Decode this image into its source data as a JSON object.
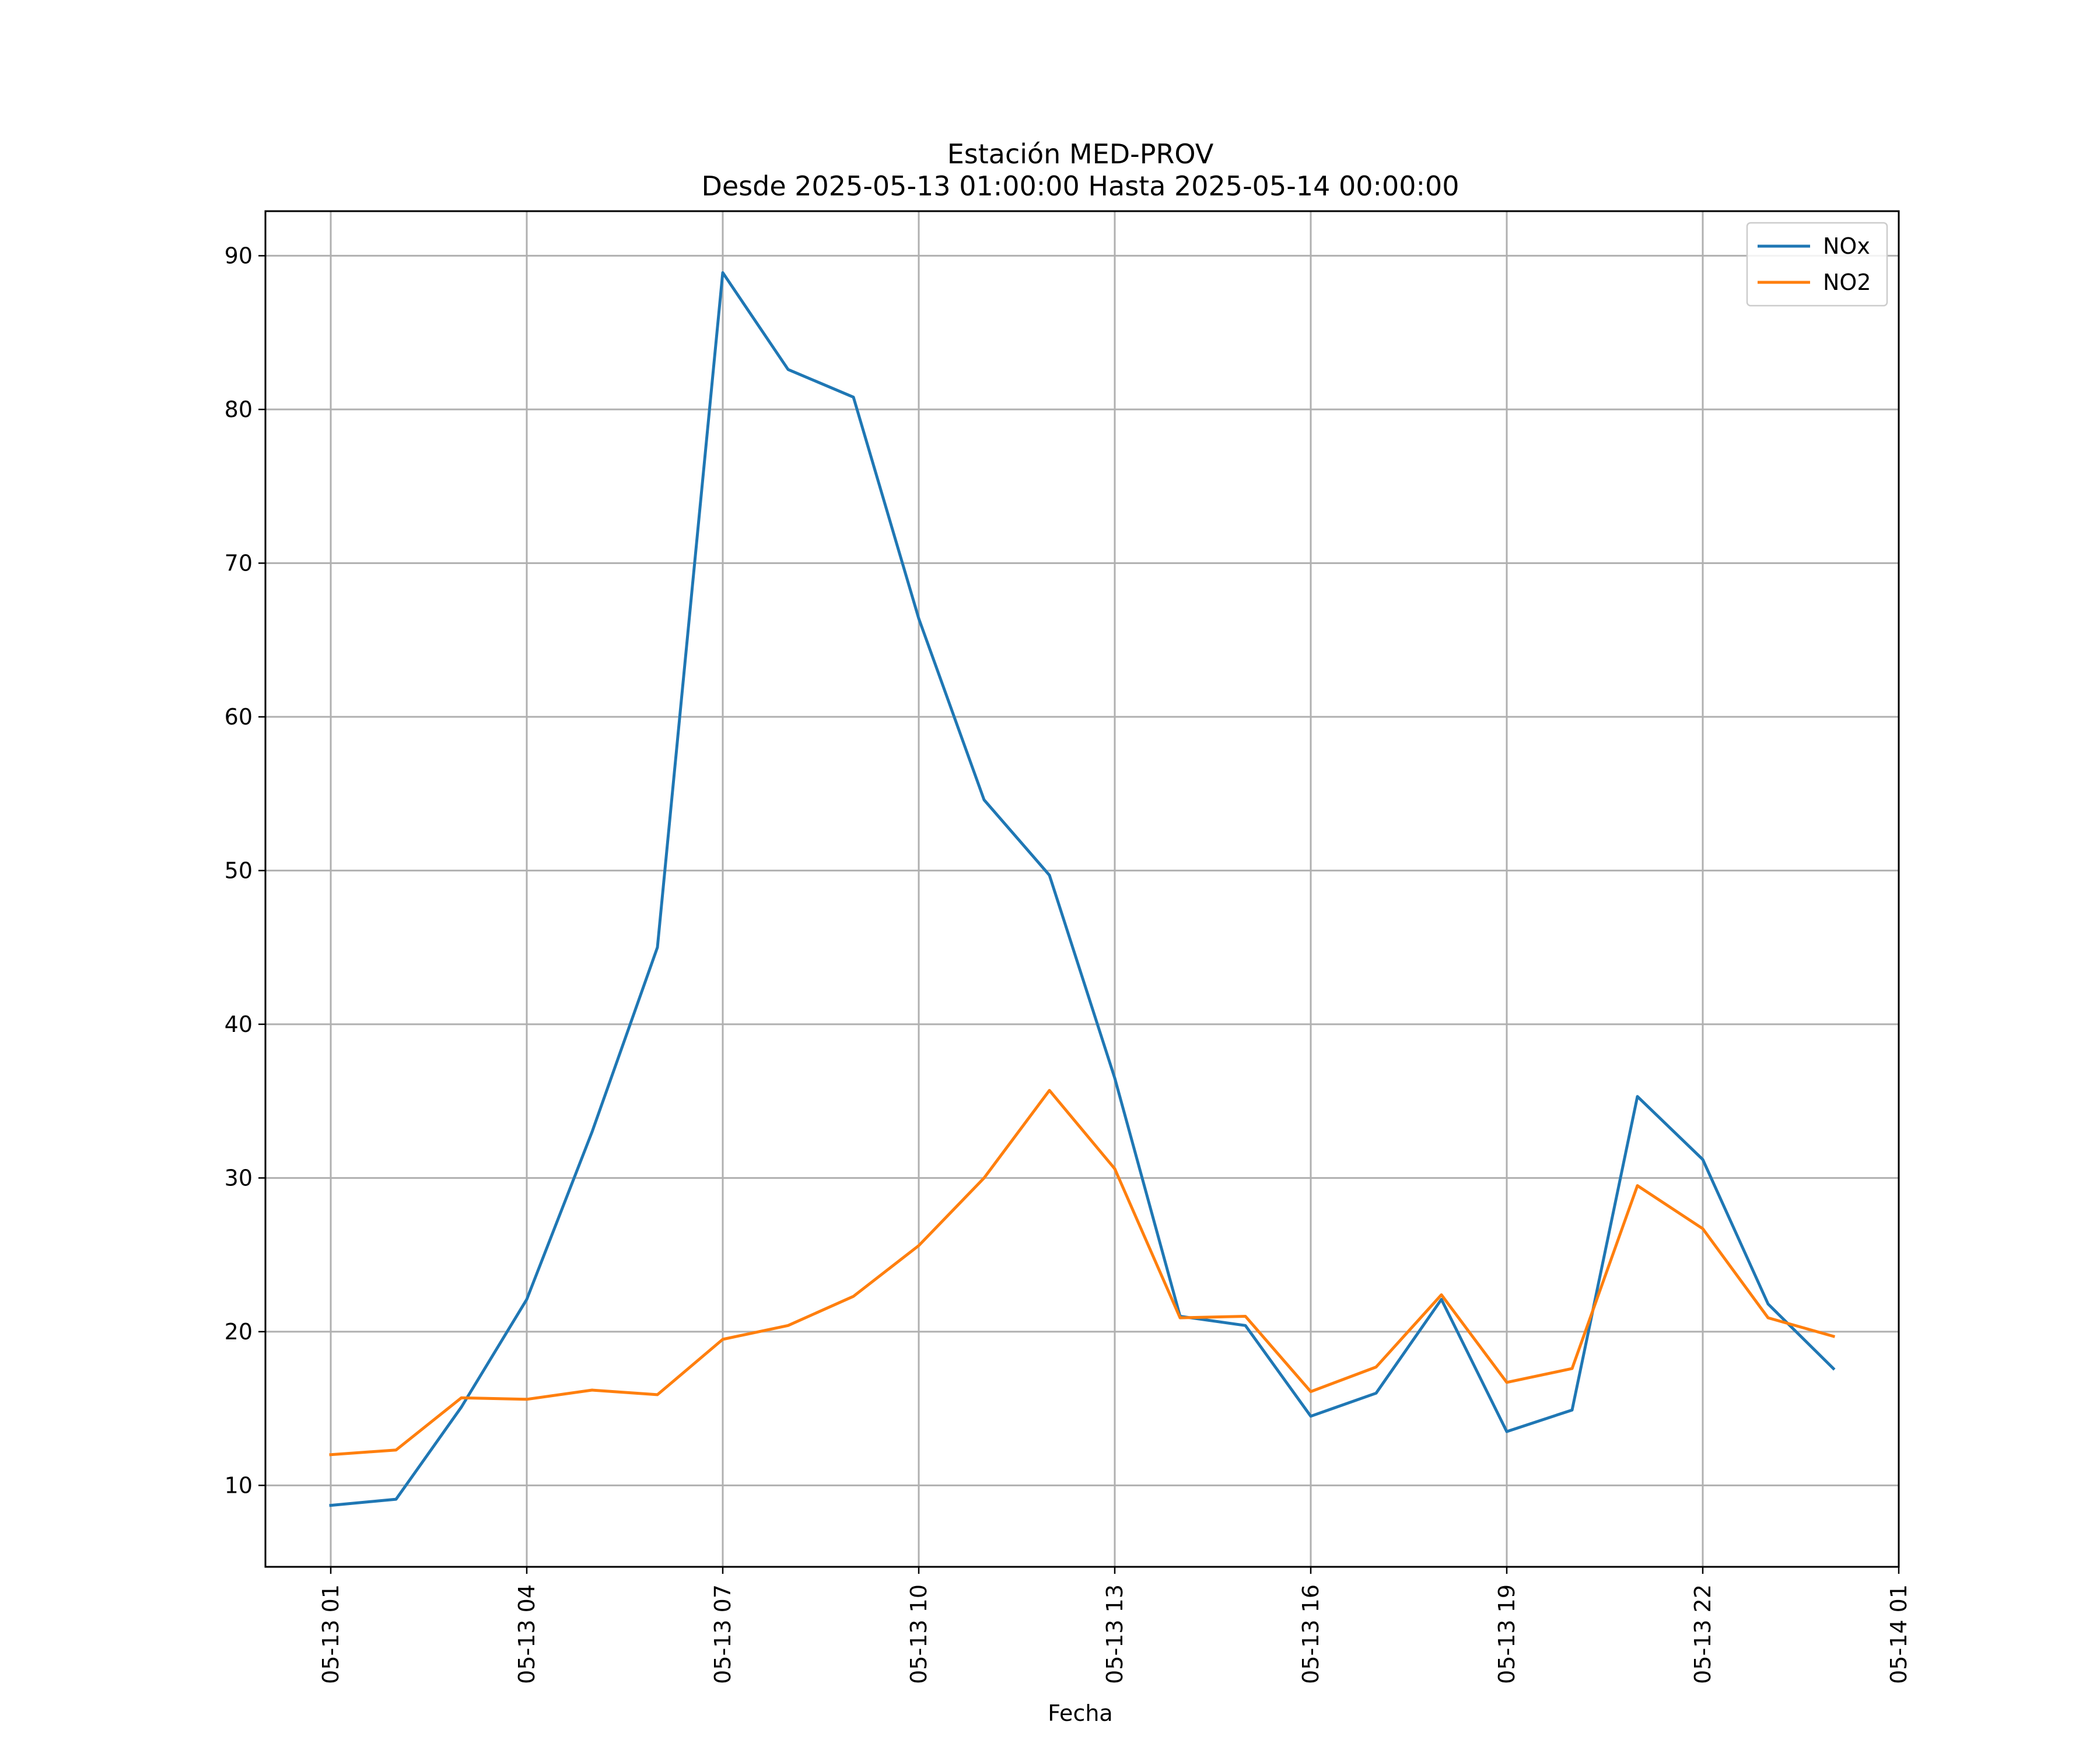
{
  "chart_data": {
    "type": "line",
    "title": "Estación MED-PROV",
    "subtitle": "Desde 2025-05-13 01:00:00 Hasta 2025-05-14 00:00:00",
    "xlabel": "Fecha",
    "ylabel": "",
    "x": [
      "2025-05-13 01:00",
      "2025-05-13 02:00",
      "2025-05-13 03:00",
      "2025-05-13 04:00",
      "2025-05-13 05:00",
      "2025-05-13 06:00",
      "2025-05-13 07:00",
      "2025-05-13 08:00",
      "2025-05-13 09:00",
      "2025-05-13 10:00",
      "2025-05-13 11:00",
      "2025-05-13 12:00",
      "2025-05-13 13:00",
      "2025-05-13 14:00",
      "2025-05-13 15:00",
      "2025-05-13 16:00",
      "2025-05-13 17:00",
      "2025-05-13 18:00",
      "2025-05-13 19:00",
      "2025-05-13 20:00",
      "2025-05-13 21:00",
      "2025-05-13 22:00",
      "2025-05-13 23:00",
      "2025-05-14 00:00"
    ],
    "series": [
      {
        "name": "NOx",
        "color": "#1f77b4",
        "values": [
          8.7,
          9.1,
          15.1,
          22.1,
          33.0,
          45.0,
          88.9,
          82.6,
          80.8,
          66.4,
          54.6,
          49.7,
          36.5,
          21.0,
          20.4,
          14.5,
          16.0,
          22.1,
          13.5,
          14.9,
          35.3,
          31.2,
          21.8,
          17.6
        ]
      },
      {
        "name": "NO2",
        "color": "#ff7f0e",
        "values": [
          12.0,
          12.3,
          15.7,
          15.6,
          16.2,
          15.9,
          19.5,
          20.4,
          22.3,
          25.6,
          30.0,
          35.7,
          30.6,
          20.9,
          21.0,
          16.1,
          17.7,
          22.4,
          16.7,
          17.6,
          29.5,
          26.7,
          20.9,
          19.7
        ]
      }
    ],
    "xticks": [
      "05-13 01",
      "05-13 04",
      "05-13 07",
      "05-13 10",
      "05-13 13",
      "05-13 16",
      "05-13 19",
      "05-13 22",
      "05-14 01"
    ],
    "xlim": [
      "2025-05-13 00:00",
      "2025-05-14 01:00"
    ],
    "yticks": [
      10,
      20,
      30,
      40,
      50,
      60,
      70,
      80,
      90
    ],
    "ylim": [
      4.7,
      92.9
    ],
    "grid": true,
    "legend_position": "top-right"
  }
}
